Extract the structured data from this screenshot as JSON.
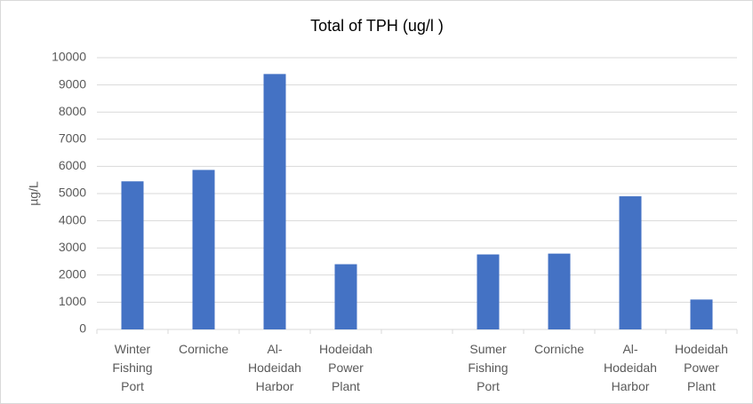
{
  "chart_data": {
    "type": "bar",
    "title": "Total of TPH (ug/l )",
    "y_label": "µg/L",
    "categories": [
      "Winter Fishing Port",
      "Corniche",
      "Al-Hodeidah Harbor",
      "Hodeidah Power Plant",
      null,
      "Sumer Fishing Port",
      "Corniche",
      "Al-Hodeidah Harbor",
      "Hodeidah Power Plant"
    ],
    "values": [
      5450,
      5870,
      9400,
      2400,
      null,
      2760,
      2790,
      4900,
      1100
    ],
    "color": "#4472c4",
    "ylim": [
      0,
      10000
    ],
    "yticks": [
      0,
      1000,
      2000,
      3000,
      4000,
      5000,
      6000,
      7000,
      8000,
      9000,
      10000
    ],
    "grid": true
  }
}
